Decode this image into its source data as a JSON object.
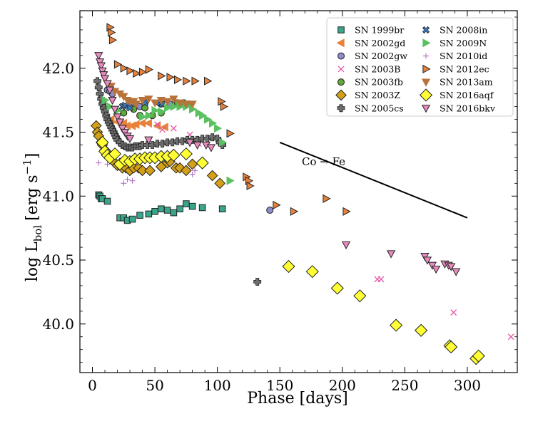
{
  "chart_data": {
    "type": "scatter",
    "title": "",
    "xlabel": "Phase [days]",
    "ylabel_main": "log L",
    "ylabel_sub": "bol",
    "ylabel_units": "[erg s",
    "ylabel_exp": "−1",
    "ylabel_close": "]",
    "xlim": [
      -10,
      340
    ],
    "ylim": [
      39.62,
      42.45
    ],
    "xticks": [
      0,
      50,
      100,
      150,
      200,
      250,
      300
    ],
    "yticks": [
      40.0,
      40.5,
      41.0,
      41.5,
      42.0
    ],
    "ytick_labels": [
      "40.0",
      "40.5",
      "41.0",
      "41.5",
      "42.0"
    ],
    "legend_position": "top-right",
    "annotation": {
      "text": "Co → Fe",
      "x": 185,
      "y": 41.27
    },
    "trend_line": {
      "x": [
        150,
        300
      ],
      "y": [
        41.42,
        40.83
      ]
    },
    "series": [
      {
        "name": "SN 1999br",
        "marker": "square",
        "color": "#3aa58a",
        "x": [
          5,
          6,
          7,
          8,
          12,
          22,
          25,
          28,
          32,
          38,
          45,
          50,
          55,
          60,
          65,
          70,
          75,
          80,
          88,
          104
        ],
        "y": [
          41.01,
          41.0,
          40.98,
          40.98,
          40.96,
          40.83,
          40.83,
          40.81,
          40.82,
          40.85,
          40.86,
          40.88,
          40.9,
          40.89,
          40.87,
          40.9,
          40.94,
          40.92,
          40.91,
          40.9
        ]
      },
      {
        "name": "SN 2002gd",
        "marker": "triangle-left",
        "color": "#e8823a",
        "x": [
          15,
          20,
          25,
          28,
          32,
          35,
          40,
          45,
          52,
          58
        ],
        "y": [
          41.6,
          41.58,
          41.57,
          41.55,
          41.55,
          41.56,
          41.57,
          41.57,
          41.55,
          41.54
        ]
      },
      {
        "name": "SN 2002gw",
        "marker": "circle",
        "color": "#8c8cc8",
        "x": [
          12,
          14,
          16,
          30,
          38,
          42,
          55,
          62,
          142
        ],
        "y": [
          41.83,
          41.82,
          41.8,
          41.72,
          41.7,
          41.73,
          41.72,
          41.72,
          40.89
        ]
      },
      {
        "name": "SN 2003B",
        "marker": "x",
        "color": "#e356a6",
        "x": [
          52,
          56,
          65,
          78,
          85,
          228,
          231,
          289,
          335
        ],
        "y": [
          41.56,
          41.52,
          41.53,
          41.48,
          41.41,
          40.35,
          40.35,
          40.09,
          39.9
        ]
      },
      {
        "name": "SN 2003fb",
        "marker": "circle",
        "color": "#5ea836",
        "x": [
          25,
          33,
          38,
          42,
          48,
          55,
          68,
          73,
          77
        ],
        "y": [
          41.65,
          41.68,
          41.63,
          41.69,
          41.63,
          41.65,
          41.73,
          41.73,
          41.72
        ]
      },
      {
        "name": "SN 2003Z",
        "marker": "diamond",
        "color": "#d4a017",
        "x": [
          3,
          4,
          5,
          7,
          8,
          10,
          18,
          20,
          24,
          27,
          30,
          33,
          37,
          40,
          46,
          55,
          60,
          62,
          67,
          70,
          75,
          80,
          96,
          102
        ],
        "y": [
          41.55,
          41.5,
          41.47,
          41.42,
          41.4,
          41.36,
          41.26,
          41.24,
          41.22,
          41.22,
          41.2,
          41.22,
          41.22,
          41.2,
          41.2,
          41.23,
          41.26,
          41.27,
          41.22,
          41.22,
          41.2,
          41.25,
          41.16,
          41.1
        ]
      },
      {
        "name": "SN 2005cs",
        "marker": "plus",
        "color": "#6e6e6e",
        "x": [
          4,
          5,
          6,
          7,
          8,
          9,
          10,
          11,
          12,
          13,
          14,
          15,
          16,
          17,
          18,
          19,
          20,
          22,
          24,
          26,
          28,
          30,
          32,
          34,
          36,
          38,
          40,
          44,
          48,
          52,
          56,
          60,
          64,
          68,
          72,
          76,
          80,
          84,
          88,
          92,
          96,
          100,
          102,
          104,
          132
        ],
        "y": [
          41.9,
          41.85,
          41.8,
          41.76,
          41.72,
          41.69,
          41.66,
          41.63,
          41.6,
          41.58,
          41.56,
          41.54,
          41.52,
          41.5,
          41.48,
          41.46,
          41.44,
          41.42,
          41.4,
          41.39,
          41.38,
          41.38,
          41.38,
          41.39,
          41.39,
          41.39,
          41.4,
          41.4,
          41.4,
          41.41,
          41.41,
          41.42,
          41.42,
          41.43,
          41.43,
          41.44,
          41.44,
          41.44,
          41.45,
          41.45,
          41.46,
          41.45,
          41.42,
          41.4,
          40.33
        ]
      },
      {
        "name": "SN 2008in",
        "marker": "x-filled",
        "color": "#3c7fc4",
        "x": [
          24,
          26,
          30,
          42,
          54,
          56
        ],
        "y": [
          41.7,
          41.71,
          41.69,
          41.73,
          41.73,
          41.72
        ]
      },
      {
        "name": "SN 2009N",
        "marker": "triangle-right",
        "color": "#5bc160",
        "x": [
          10,
          14,
          20,
          40,
          45,
          50,
          55,
          60,
          65,
          70,
          75,
          80,
          85,
          88,
          92,
          96,
          100,
          104,
          110
        ],
        "y": [
          41.75,
          41.7,
          41.67,
          41.62,
          41.63,
          41.67,
          41.66,
          41.69,
          41.7,
          41.7,
          41.7,
          41.68,
          41.65,
          41.63,
          41.6,
          41.57,
          41.53,
          41.42,
          41.12
        ]
      },
      {
        "name": "SN 2010id",
        "marker": "plus-thin",
        "color": "#b070c0",
        "x": [
          5,
          12,
          25,
          28,
          32,
          80,
          82
        ],
        "y": [
          41.26,
          41.25,
          41.1,
          41.13,
          41.12,
          41.17,
          41.2
        ]
      },
      {
        "name": "SN 2012ec",
        "marker": "triangle-right",
        "color": "#e8823a",
        "x": [
          14,
          15,
          16,
          20,
          25,
          30,
          35,
          40,
          45,
          55,
          62,
          68,
          75,
          82,
          92,
          103,
          105,
          110,
          123,
          125,
          126,
          147,
          161,
          187,
          203
        ],
        "y": [
          42.32,
          42.28,
          42.22,
          42.03,
          42.0,
          41.98,
          41.96,
          41.97,
          41.99,
          41.94,
          41.93,
          41.91,
          41.9,
          41.9,
          41.9,
          41.74,
          41.7,
          41.49,
          41.15,
          41.12,
          41.08,
          40.93,
          40.88,
          40.98,
          40.88
        ]
      },
      {
        "name": "SN 2013am",
        "marker": "triangle-down",
        "color": "#b8733a",
        "x": [
          12,
          15,
          18,
          22,
          25,
          28,
          30,
          33,
          35,
          40,
          45,
          50,
          55,
          60,
          65,
          70,
          75,
          80
        ],
        "y": [
          41.88,
          41.86,
          41.82,
          41.8,
          41.78,
          41.75,
          41.74,
          41.74,
          41.72,
          41.75,
          41.76,
          41.73,
          41.75,
          41.74,
          41.76,
          41.73,
          41.72,
          41.72
        ]
      },
      {
        "name": "SN 2016aqf",
        "marker": "diamond",
        "color": "#ffff33",
        "x": [
          8,
          10,
          12,
          14,
          18,
          22,
          26,
          30,
          34,
          38,
          42,
          46,
          50,
          55,
          60,
          65,
          75,
          88,
          157,
          176,
          196,
          214,
          243,
          263,
          286,
          287,
          307,
          309
        ],
        "y": [
          41.42,
          41.35,
          41.32,
          41.3,
          41.33,
          41.25,
          41.28,
          41.27,
          41.29,
          41.29,
          41.3,
          41.3,
          41.3,
          41.31,
          41.31,
          41.32,
          41.33,
          41.26,
          40.45,
          40.41,
          40.28,
          40.22,
          39.99,
          39.95,
          39.83,
          39.82,
          39.73,
          39.75
        ]
      },
      {
        "name": "SN 2016bkv",
        "marker": "triangle-down",
        "color": "#e88cc0",
        "x": [
          5,
          6,
          7,
          8,
          9,
          10,
          12,
          14,
          16,
          18,
          20,
          22,
          24,
          26,
          28,
          30,
          45,
          78,
          84,
          91,
          95,
          203,
          239,
          266,
          268,
          272,
          275,
          282,
          285,
          287,
          291
        ],
        "y": [
          42.1,
          42.05,
          42.02,
          41.98,
          41.95,
          41.92,
          41.88,
          41.83,
          41.75,
          41.68,
          41.62,
          41.58,
          41.53,
          41.5,
          41.47,
          41.45,
          41.44,
          41.42,
          41.4,
          41.4,
          41.38,
          40.62,
          40.55,
          40.53,
          40.5,
          40.46,
          40.43,
          40.47,
          40.46,
          40.45,
          40.41
        ]
      }
    ]
  }
}
